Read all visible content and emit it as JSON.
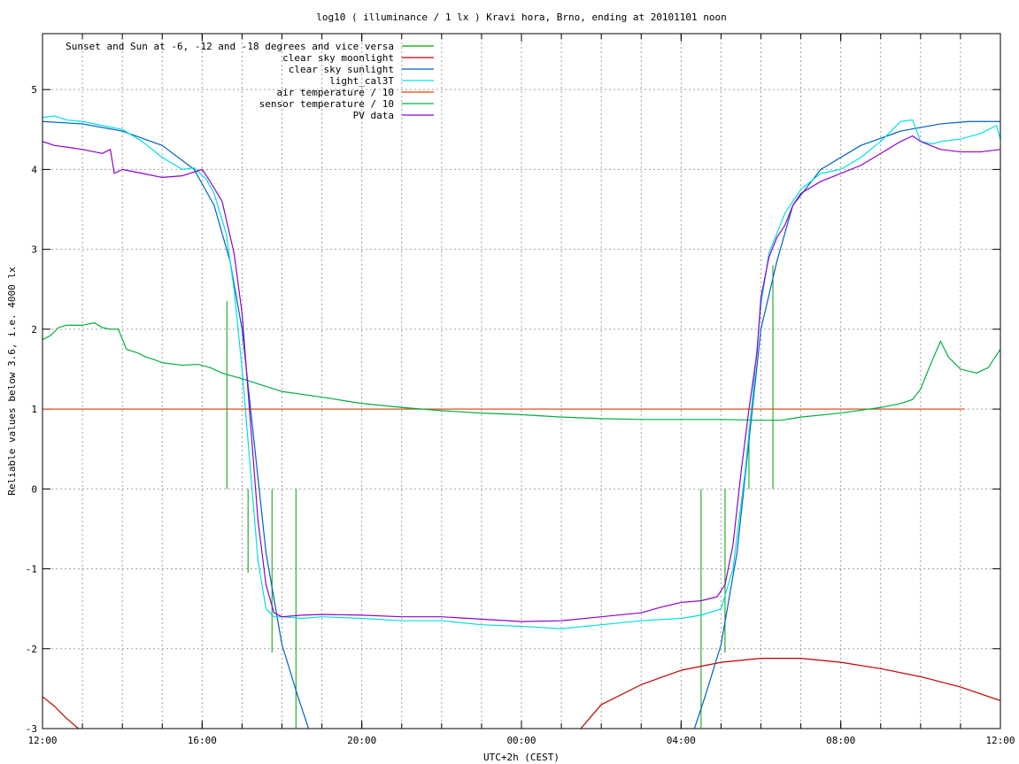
{
  "chart_data": {
    "type": "line",
    "title": "log10 ( illuminance / 1 lx ) Kravi hora, Brno, ending at 20101101 noon",
    "xlabel": "UTC+2h (CEST)",
    "ylabel": "Reliable values below 3.6, i.e. 4000 lx",
    "x_unit": "hours since 12:00",
    "xlim": [
      0,
      24
    ],
    "ylim": [
      -3,
      5.7
    ],
    "grid": true,
    "legend_position": "top-left",
    "x_ticks": [
      {
        "x": 0,
        "label": "12:00"
      },
      {
        "x": 4,
        "label": "16:00"
      },
      {
        "x": 8,
        "label": "20:00"
      },
      {
        "x": 12,
        "label": "00:00"
      },
      {
        "x": 16,
        "label": "04:00"
      },
      {
        "x": 20,
        "label": "08:00"
      },
      {
        "x": 24,
        "label": "12:00"
      }
    ],
    "y_ticks": [
      {
        "y": 5,
        "label": "5"
      },
      {
        "y": 4,
        "label": "4"
      },
      {
        "y": 3,
        "label": "3"
      },
      {
        "y": 2,
        "label": "2"
      },
      {
        "y": 1,
        "label": "1"
      },
      {
        "y": 0,
        "label": "0"
      },
      {
        "y": -1,
        "label": "-1"
      },
      {
        "y": -2,
        "label": "-2"
      },
      {
        "y": -3,
        "label": "-3"
      }
    ],
    "series": [
      {
        "name": "Sunset and Sun at -6, -12 and -18 degrees and vice versa",
        "color": "#00a000",
        "style": "impulses",
        "impulses": [
          {
            "x": 4.62,
            "y": 2.35
          },
          {
            "x": 5.15,
            "y": -1.05
          },
          {
            "x": 5.75,
            "y": -2.05
          },
          {
            "x": 6.35,
            "y": -3.0
          },
          {
            "x": 16.5,
            "y": -3.0
          },
          {
            "x": 17.1,
            "y": -2.05
          },
          {
            "x": 17.7,
            "y": 0.75
          },
          {
            "x": 18.3,
            "y": 2.8
          }
        ]
      },
      {
        "name": "clear sky moonlight",
        "color": "#c00000",
        "x": [
          0,
          0.3,
          0.6,
          0.9,
          1.0,
          13.4,
          14.0,
          15.0,
          16.0,
          17.0,
          18.0,
          19.0,
          20.0,
          21.0,
          22.0,
          23.0,
          24.0
        ],
        "y": [
          -2.6,
          -2.72,
          -2.87,
          -3.0,
          -3.05,
          -3.05,
          -2.7,
          -2.45,
          -2.27,
          -2.17,
          -2.12,
          -2.12,
          -2.17,
          -2.25,
          -2.35,
          -2.48,
          -2.65
        ]
      },
      {
        "name": "clear sky sunlight",
        "color": "#0060c0",
        "x": [
          0,
          1,
          2,
          3,
          3.8,
          4.3,
          4.7,
          5.0,
          5.3,
          5.6,
          6.0,
          6.4,
          6.7,
          16.3,
          16.6,
          17.0,
          17.4,
          17.7,
          18.0,
          18.4,
          18.8,
          19.5,
          20.5,
          21.5,
          22.5,
          23.2,
          24.0
        ],
        "y": [
          4.6,
          4.57,
          4.48,
          4.3,
          4.0,
          3.55,
          2.85,
          2.0,
          0.6,
          -0.8,
          -1.95,
          -2.6,
          -3.05,
          -3.05,
          -2.6,
          -1.95,
          -0.8,
          0.6,
          2.0,
          2.85,
          3.55,
          4.0,
          4.3,
          4.48,
          4.57,
          4.6,
          4.6
        ]
      },
      {
        "name": "light_cal3T",
        "color": "#00e0e0",
        "x": [
          0,
          0.3,
          0.6,
          1.0,
          1.5,
          2.0,
          2.5,
          3.0,
          3.5,
          3.8,
          4.1,
          4.3,
          4.6,
          4.8,
          5.0,
          5.2,
          5.4,
          5.6,
          5.8,
          6.0,
          6.5,
          7.0,
          8.0,
          9.0,
          10.0,
          11.0,
          12.0,
          13.0,
          14.0,
          15.0,
          16.0,
          16.5,
          17.0,
          17.3,
          17.6,
          17.8,
          18.0,
          18.2,
          18.4,
          18.6,
          18.8,
          19.0,
          19.5,
          20.0,
          20.5,
          21.0,
          21.5,
          21.8,
          22.0,
          22.3,
          22.5,
          23.0,
          23.5,
          23.9,
          24.0
        ],
        "y": [
          4.65,
          4.67,
          4.62,
          4.6,
          4.55,
          4.5,
          4.35,
          4.15,
          4.0,
          4.02,
          3.88,
          3.7,
          3.2,
          2.5,
          1.5,
          0.3,
          -0.9,
          -1.5,
          -1.6,
          -1.6,
          -1.62,
          -1.6,
          -1.62,
          -1.65,
          -1.65,
          -1.7,
          -1.72,
          -1.75,
          -1.7,
          -1.65,
          -1.62,
          -1.58,
          -1.5,
          -1.0,
          0.2,
          1.2,
          2.3,
          2.95,
          3.2,
          3.45,
          3.6,
          3.75,
          3.95,
          4.0,
          4.15,
          4.35,
          4.6,
          4.62,
          4.35,
          4.32,
          4.35,
          4.38,
          4.45,
          4.55,
          4.38
        ]
      },
      {
        "name": "air temperature / 10",
        "color": "#e04000",
        "x": [
          0,
          23.1
        ],
        "y": [
          1.0,
          1.0
        ]
      },
      {
        "name": "sensor temperature / 10",
        "color": "#00b040",
        "x": [
          0,
          0.2,
          0.4,
          0.6,
          1.0,
          1.3,
          1.5,
          1.7,
          1.9,
          2.1,
          2.4,
          2.6,
          2.8,
          3.0,
          3.5,
          3.9,
          4.2,
          4.5,
          5.0,
          5.5,
          6.0,
          7.0,
          8.0,
          9.0,
          10.0,
          11.0,
          12.0,
          13.0,
          14.0,
          15.0,
          16.0,
          17.0,
          18.0,
          18.5,
          19.0,
          20.0,
          21.0,
          21.5,
          21.8,
          22.0,
          22.2,
          22.5,
          22.7,
          23.0,
          23.4,
          23.7,
          23.8,
          24.0
        ],
        "y": [
          1.87,
          1.92,
          2.02,
          2.05,
          2.05,
          2.08,
          2.02,
          2.0,
          2.0,
          1.75,
          1.7,
          1.65,
          1.62,
          1.58,
          1.55,
          1.56,
          1.52,
          1.45,
          1.38,
          1.3,
          1.22,
          1.15,
          1.07,
          1.02,
          0.98,
          0.95,
          0.93,
          0.9,
          0.88,
          0.87,
          0.87,
          0.87,
          0.86,
          0.86,
          0.9,
          0.95,
          1.02,
          1.07,
          1.12,
          1.25,
          1.5,
          1.85,
          1.65,
          1.5,
          1.45,
          1.52,
          1.6,
          1.75
        ]
      },
      {
        "name": "PV data",
        "color": "#9000d0",
        "x": [
          0,
          0.3,
          0.6,
          1.0,
          1.5,
          1.7,
          1.8,
          2.0,
          2.5,
          3.0,
          3.5,
          4.0,
          4.2,
          4.5,
          4.8,
          5.0,
          5.2,
          5.4,
          5.6,
          5.8,
          6.0,
          6.5,
          7.0,
          8.0,
          9.0,
          10.0,
          11.0,
          12.0,
          13.0,
          14.0,
          15.0,
          15.5,
          16.0,
          16.5,
          16.9,
          17.1,
          17.3,
          17.5,
          17.7,
          17.9,
          18.0,
          18.2,
          18.4,
          18.6,
          18.8,
          19.0,
          19.5,
          20.0,
          20.5,
          21.0,
          21.5,
          21.8,
          22.0,
          22.5,
          23.0,
          23.5,
          24.0
        ],
        "y": [
          4.35,
          4.3,
          4.28,
          4.25,
          4.2,
          4.25,
          3.95,
          4.0,
          3.95,
          3.9,
          3.92,
          4.0,
          3.85,
          3.6,
          2.95,
          2.2,
          0.9,
          -0.4,
          -1.2,
          -1.55,
          -1.6,
          -1.58,
          -1.57,
          -1.58,
          -1.6,
          -1.6,
          -1.63,
          -1.66,
          -1.65,
          -1.6,
          -1.55,
          -1.48,
          -1.42,
          -1.4,
          -1.35,
          -1.2,
          -0.7,
          0.2,
          1.0,
          1.7,
          2.4,
          2.9,
          3.15,
          3.3,
          3.55,
          3.7,
          3.85,
          3.95,
          4.05,
          4.2,
          4.35,
          4.42,
          4.35,
          4.25,
          4.22,
          4.22,
          4.25
        ]
      }
    ]
  }
}
